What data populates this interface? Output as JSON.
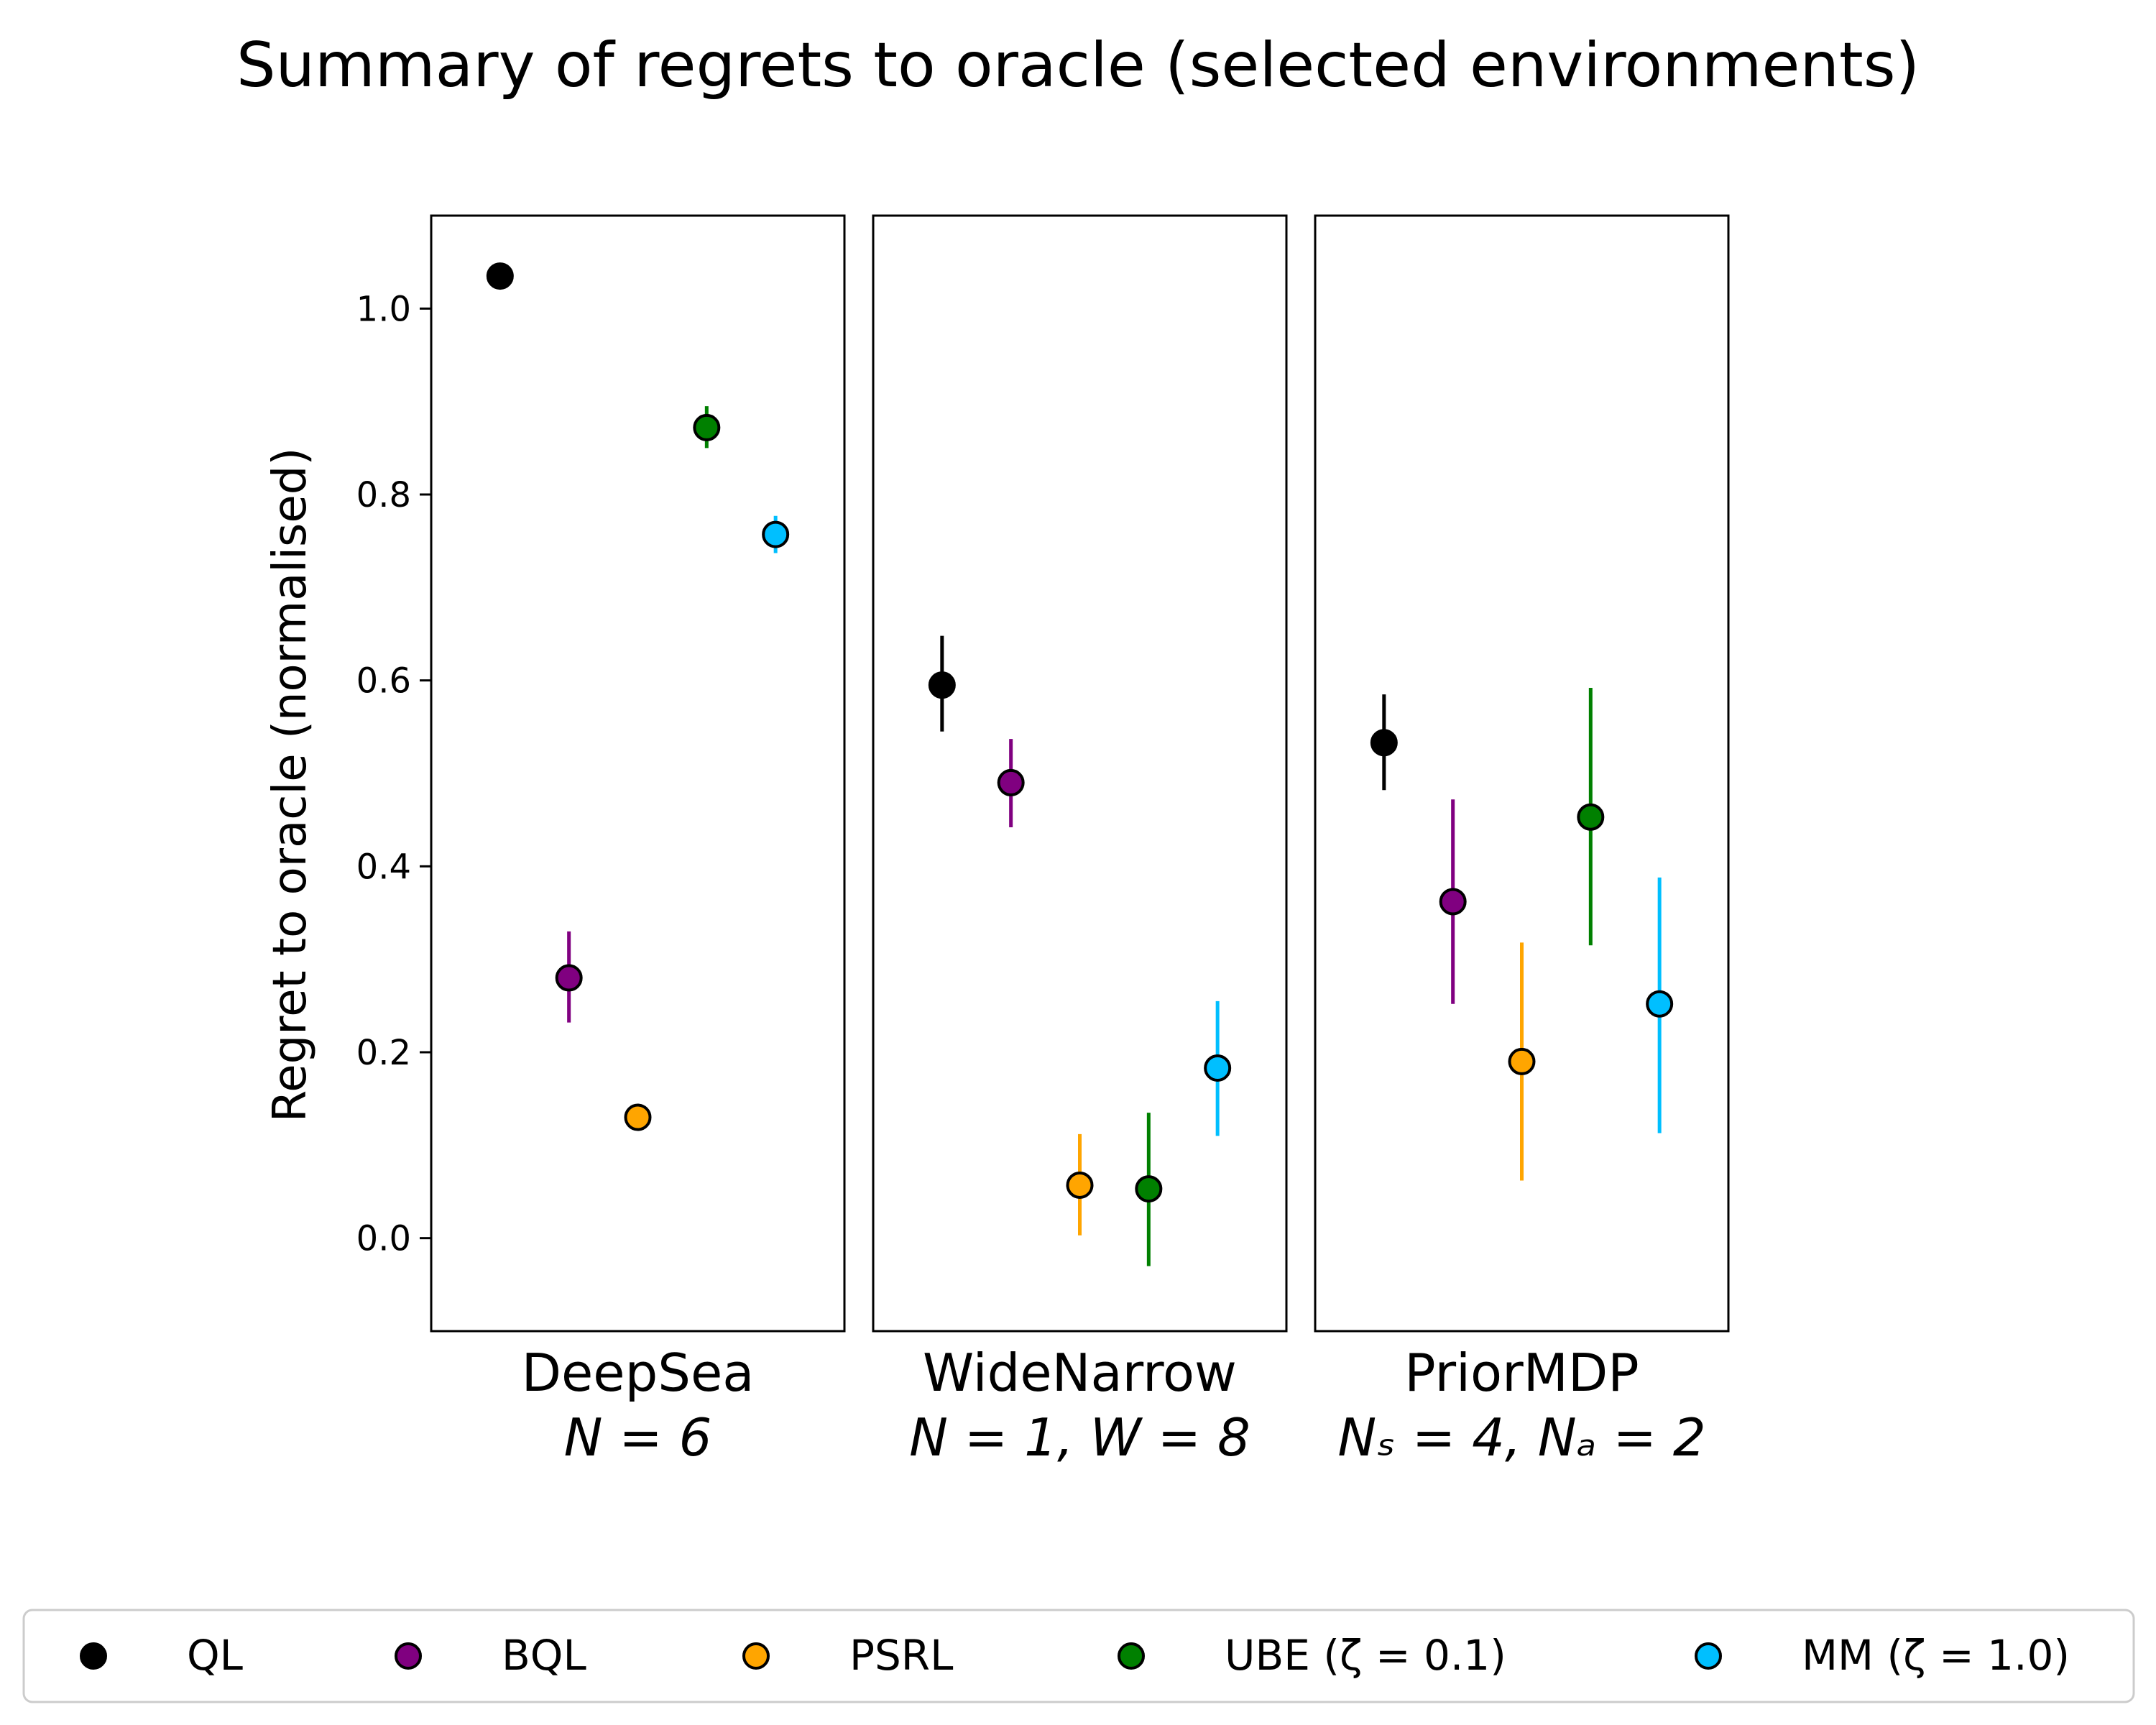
{
  "chart_data": {
    "type": "scatter",
    "title": "Summary of regrets to oracle (selected environments)",
    "ylabel": "Regret to oracle (normalised)",
    "ylim": [
      -0.1,
      1.1
    ],
    "yticks": [
      "0.0",
      "0.2",
      "0.4",
      "0.6",
      "0.8",
      "1.0"
    ],
    "ytick_values": [
      0.0,
      0.2,
      0.4,
      0.6,
      0.8,
      1.0
    ],
    "grid": false,
    "legend_position": "bottom",
    "panels": [
      {
        "name": "DeepSea",
        "subtitle": "N = 6"
      },
      {
        "name": "WideNarrow",
        "subtitle": "N = 1, W = 8"
      },
      {
        "name": "PriorMDP",
        "subtitle": "Nₛ = 4, Nₐ = 2"
      }
    ],
    "series": [
      {
        "name": "QL",
        "color": "#000000",
        "values": [
          1.035,
          0.595,
          0.533
        ],
        "err_low": [
          1.035,
          0.545,
          0.482
        ],
        "err_high": [
          1.035,
          0.648,
          0.585
        ]
      },
      {
        "name": "BQL",
        "color": "#800080",
        "values": [
          0.28,
          0.49,
          0.362
        ],
        "err_low": [
          0.232,
          0.442,
          0.252
        ],
        "err_high": [
          0.33,
          0.537,
          0.472
        ]
      },
      {
        "name": "PSRL",
        "color": "#ffa500",
        "values": [
          0.13,
          0.057,
          0.19
        ],
        "err_low": [
          0.13,
          0.003,
          0.062
        ],
        "err_high": [
          0.13,
          0.112,
          0.318
        ]
      },
      {
        "name": "UBE (ζ = 0.1)",
        "color": "#008000",
        "values": [
          0.872,
          0.053,
          0.453
        ],
        "err_low": [
          0.85,
          -0.03,
          0.315
        ],
        "err_high": [
          0.895,
          0.135,
          0.592
        ]
      },
      {
        "name": "MM (ζ = 1.0)",
        "color": "#00bfff",
        "values": [
          0.757,
          0.183,
          0.252
        ],
        "err_low": [
          0.737,
          0.11,
          0.113
        ],
        "err_high": [
          0.777,
          0.255,
          0.388
        ]
      }
    ]
  }
}
